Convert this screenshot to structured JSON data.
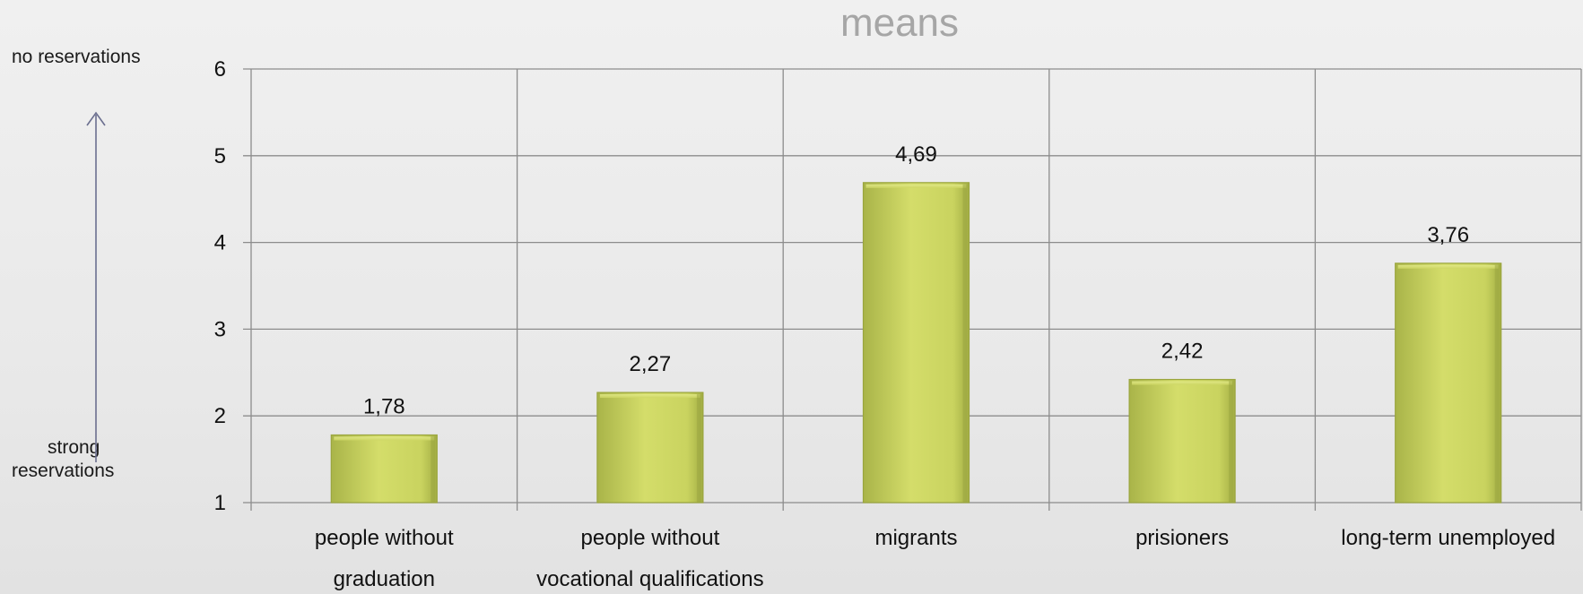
{
  "left_annotation": {
    "top_label": "no reservations",
    "bottom_label_line1": "strong",
    "bottom_label_line2": "reservations"
  },
  "chart_data": {
    "type": "bar",
    "title": "means",
    "xlabel": "",
    "ylabel": "",
    "categories": [
      [
        "people without",
        "graduation"
      ],
      [
        "people without",
        "vocational qualifications"
      ],
      [
        "migrants"
      ],
      [
        "prisioners"
      ],
      [
        "long-term unemployed"
      ]
    ],
    "values": [
      1.78,
      2.27,
      4.69,
      2.42,
      3.76
    ],
    "data_labels": [
      "1,78",
      "2,27",
      "4,69",
      "2,42",
      "3,76"
    ],
    "ylim": [
      1,
      6
    ],
    "yticks": [
      1,
      2,
      3,
      4,
      5,
      6
    ],
    "grid": true,
    "legend": "none",
    "colors": {
      "bar_light": "#d7e06c",
      "bar_mid": "#c6d05e",
      "bar_dark": "#9aa640",
      "grid": "#8c8c8c",
      "title": "#a6a6a6",
      "arrow": "#6b6f8f",
      "text": "#111111"
    }
  }
}
